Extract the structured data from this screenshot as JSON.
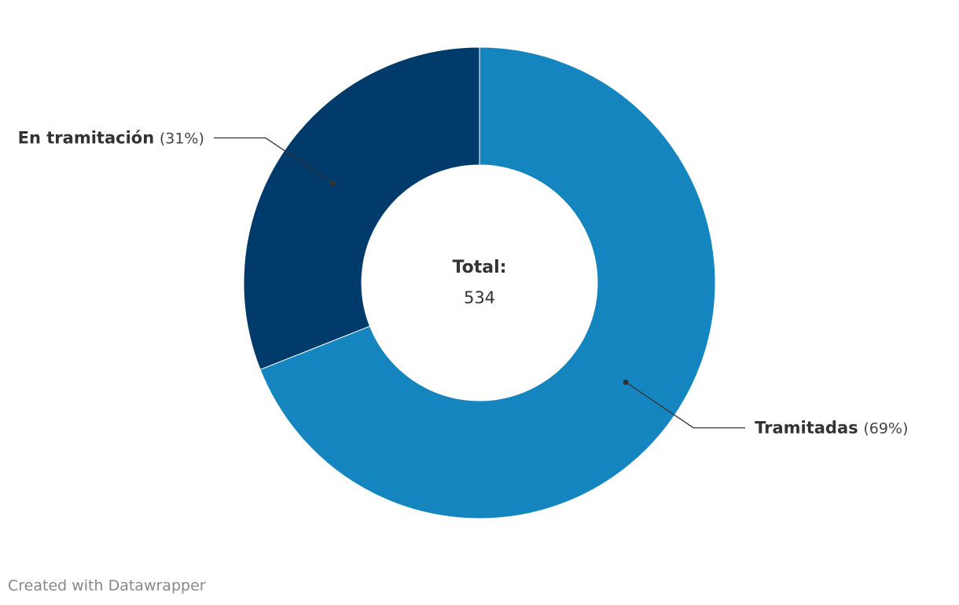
{
  "chart_data": {
    "type": "pie",
    "categories": [
      "Tramitadas",
      "En tramitación"
    ],
    "values": [
      69,
      31
    ],
    "value_labels": [
      "(69%)",
      "(31%)"
    ],
    "colors": [
      "#1585bf",
      "#003b6c"
    ],
    "center_title": "Total:",
    "center_value": "534",
    "credit": "Created with Datawrapper"
  }
}
